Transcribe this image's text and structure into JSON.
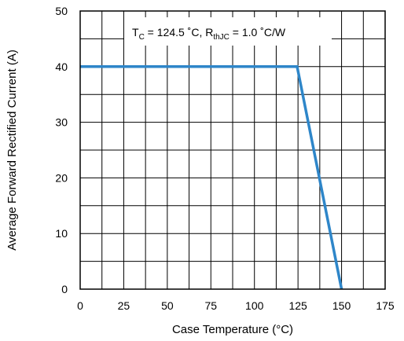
{
  "chart_data": {
    "type": "line",
    "xlabel": "Case Temperature (°C)",
    "ylabel": "Average Forward Rectified Current (A)",
    "x_ticks": [
      "0",
      "25",
      "50",
      "75",
      "100",
      "125",
      "150",
      "175"
    ],
    "y_ticks": [
      "0",
      "10",
      "20",
      "30",
      "40",
      "50"
    ],
    "xlim": [
      0,
      175
    ],
    "ylim": [
      0,
      50
    ],
    "x_minor_step": 12.5,
    "y_minor_step": 5,
    "grid": true,
    "series": [
      {
        "x": [
          0,
          124.5,
          150
        ],
        "y": [
          40,
          40,
          0
        ],
        "color": "#2e86c9"
      }
    ],
    "annotation": {
      "p1_main": "T",
      "p1_sub": "C",
      "p2": " = 124.5 ˚C, R",
      "p3_sub": "thJC",
      "p4": " = 1.0 ˚C/W"
    }
  }
}
